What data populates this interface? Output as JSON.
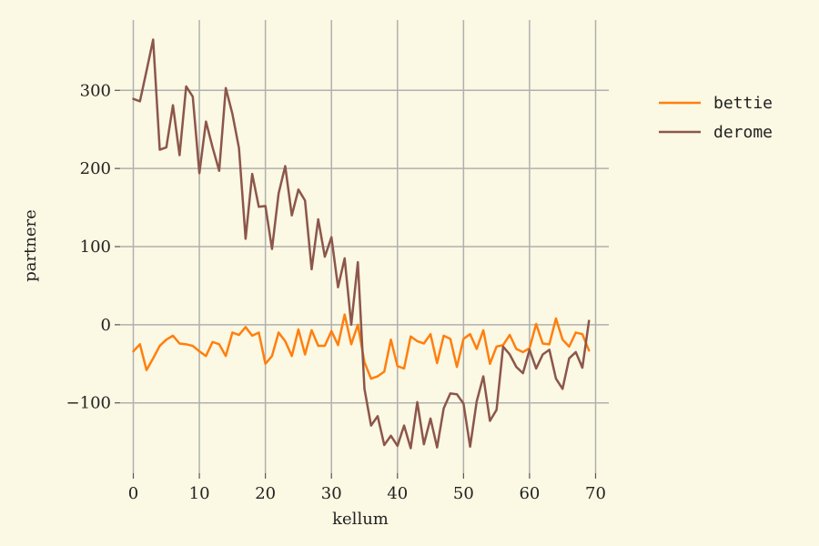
{
  "chart_data": {
    "type": "line",
    "xlabel": "kellum",
    "ylabel": "partnere",
    "xlim": [
      -2,
      72
    ],
    "ylim": [
      -190,
      390
    ],
    "xticks": [
      0,
      10,
      20,
      30,
      40,
      50,
      60,
      70
    ],
    "yticks": [
      -100,
      0,
      100,
      200,
      300
    ],
    "grid": true,
    "legend_position": "top-right-outside",
    "series": [
      {
        "name": "bettie",
        "color": "#ff7f0e",
        "x": [
          0,
          1,
          2,
          3,
          4,
          5,
          6,
          7,
          8,
          9,
          10,
          11,
          12,
          13,
          14,
          15,
          16,
          17,
          18,
          19,
          20,
          21,
          22,
          23,
          24,
          25,
          26,
          27,
          28,
          29,
          30,
          31,
          32,
          33,
          34,
          35,
          36,
          37,
          38,
          39,
          40,
          41,
          42,
          43,
          44,
          45,
          46,
          47,
          48,
          49,
          50,
          51,
          52,
          53,
          54,
          55,
          56,
          57,
          58,
          59,
          60,
          61,
          62,
          63,
          64,
          65,
          66,
          67,
          68,
          69
        ],
        "y": [
          -34,
          -25,
          -58,
          -43,
          -27,
          -19,
          -14,
          -24,
          -25,
          -27,
          -34,
          -40,
          -22,
          -25,
          -40,
          -10,
          -13,
          -3,
          -14,
          -10,
          -50,
          -40,
          -10,
          -21,
          -40,
          -6,
          -38,
          -7,
          -27,
          -27,
          -8,
          -26,
          13,
          -25,
          0,
          -48,
          -69,
          -66,
          -60,
          -19,
          -53,
          -56,
          -15,
          -21,
          -24,
          -12,
          -49,
          -14,
          -18,
          -54,
          -18,
          -12,
          -31,
          -7,
          -50,
          -28,
          -26,
          -13,
          -31,
          -35,
          -30,
          1,
          -24,
          -25,
          8,
          -19,
          -28,
          -10,
          -12,
          -33
        ]
      },
      {
        "name": "derome",
        "color": "#8c564b",
        "x": [
          0,
          1,
          2,
          3,
          4,
          5,
          6,
          7,
          8,
          9,
          10,
          11,
          12,
          13,
          14,
          15,
          16,
          17,
          18,
          19,
          20,
          21,
          22,
          23,
          24,
          25,
          26,
          27,
          28,
          29,
          30,
          31,
          32,
          33,
          34,
          35,
          36,
          37,
          38,
          39,
          40,
          41,
          42,
          43,
          44,
          45,
          46,
          47,
          48,
          49,
          50,
          51,
          52,
          53,
          54,
          55,
          56,
          57,
          58,
          59,
          60,
          61,
          62,
          63,
          64,
          65,
          66,
          67,
          68,
          69
        ],
        "y": [
          289,
          286,
          325,
          365,
          224,
          227,
          281,
          217,
          305,
          292,
          194,
          260,
          227,
          197,
          303,
          270,
          226,
          110,
          193,
          151,
          152,
          97,
          168,
          203,
          140,
          173,
          159,
          71,
          135,
          87,
          112,
          48,
          85,
          0,
          80,
          -82,
          -129,
          -117,
          -154,
          -142,
          -155,
          -129,
          -158,
          -99,
          -153,
          -120,
          -157,
          -107,
          -88,
          -89,
          -101,
          -156,
          -98,
          -66,
          -123,
          -109,
          -28,
          -38,
          -54,
          -62,
          -32,
          -56,
          -38,
          -32,
          -69,
          -82,
          -43,
          -35,
          -55,
          5
        ]
      }
    ]
  }
}
